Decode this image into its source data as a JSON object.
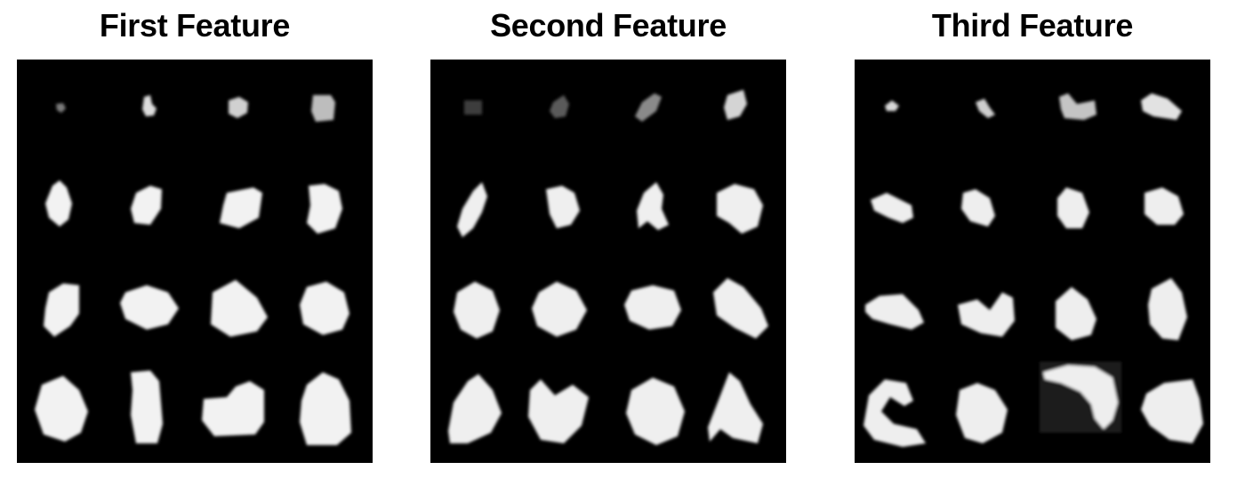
{
  "figure": {
    "background_color": "#000000",
    "blob_color": "#ffffff",
    "grid_rows": 4,
    "grid_cols": 4,
    "panels": [
      {
        "title": "First Feature"
      },
      {
        "title": "Second Feature"
      },
      {
        "title": "Third Feature"
      }
    ]
  }
}
